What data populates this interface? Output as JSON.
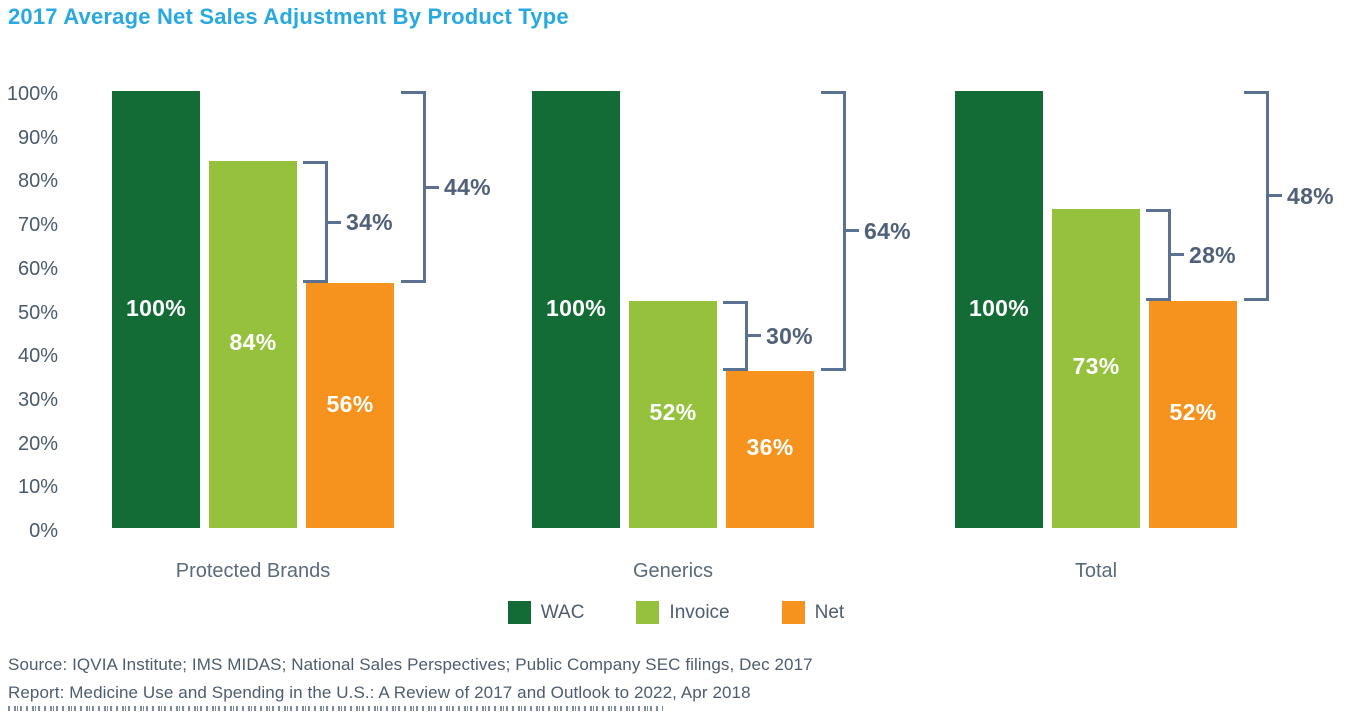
{
  "chart_data": {
    "type": "bar",
    "title": "2017 Average Net Sales Adjustment By Product Type",
    "categories": [
      "Protected Brands",
      "Generics",
      "Total"
    ],
    "series": [
      {
        "name": "WAC",
        "color": "#136B35",
        "values": [
          100,
          100,
          100
        ],
        "labels": [
          "100%",
          "100%",
          "100%"
        ]
      },
      {
        "name": "Invoice",
        "color": "#95C13C",
        "values": [
          84,
          52,
          73
        ],
        "labels": [
          "84%",
          "52%",
          "73%"
        ]
      },
      {
        "name": "Net",
        "color": "#F6921E",
        "values": [
          56,
          36,
          52
        ],
        "labels": [
          "56%",
          "36%",
          "52%"
        ]
      }
    ],
    "brackets": {
      "invoice_to_net_labels": [
        "34%",
        "30%",
        "28%"
      ],
      "wac_to_net_labels": [
        "44%",
        "64%",
        "48%"
      ]
    },
    "y_axis": {
      "ticks": [
        "100%",
        "90%",
        "80%",
        "70%",
        "60%",
        "50%",
        "40%",
        "30%",
        "20%",
        "10%",
        "0%"
      ],
      "min": 0,
      "max": 100,
      "grid": false
    },
    "legend_position": "bottom-center"
  },
  "footer": {
    "source_line": "Source: IQVIA Institute; IMS MIDAS; National Sales Perspectives; Public Company SEC filings, Dec 2017",
    "report_line": "Report: Medicine Use and Spending in the U.S.: A Review of 2017 and Outlook to 2022, Apr 2018"
  },
  "colors": {
    "title": "#29A9E0",
    "wac_green": "#136B35",
    "invoice_green": "#95C13C",
    "net_orange": "#F6921E",
    "bracket": "#5B7191",
    "bracket_text": "#4F6078",
    "axis_text": "#4A5A6B",
    "category_text": "#5A6A7B",
    "legend_text": "#4D5C6E",
    "source_text": "#4D5C6E"
  }
}
